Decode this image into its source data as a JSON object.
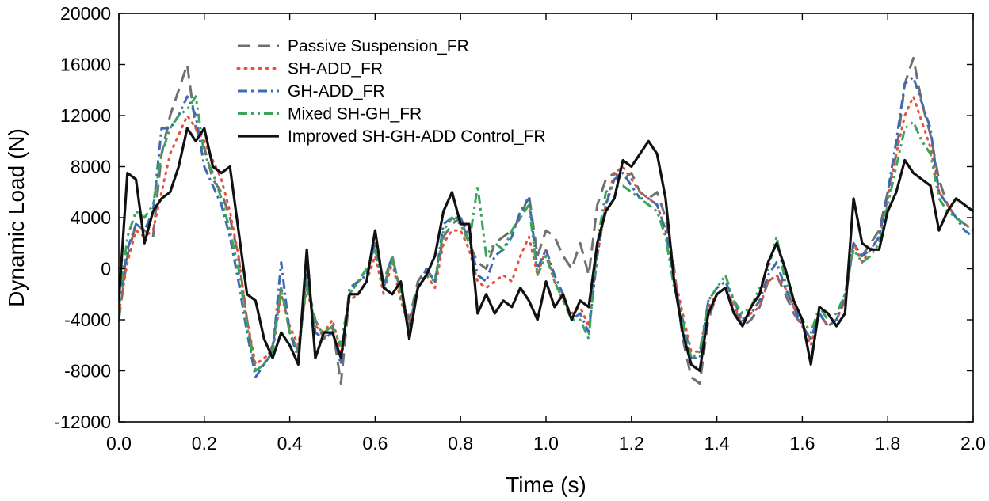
{
  "chart_data": {
    "type": "line",
    "title": "",
    "xlabel": "Time (s)",
    "ylabel": "Dynamic Load (N)",
    "xlim": [
      0,
      2
    ],
    "ylim": [
      -12000,
      20000
    ],
    "xticks": [
      0.0,
      0.2,
      0.4,
      0.6,
      0.8,
      1.0,
      1.2,
      1.4,
      1.6,
      1.8,
      2.0
    ],
    "xtick_labels": [
      "0.0",
      "0.2",
      "0.4",
      "0.6",
      "0.8",
      "1.0",
      "1.2",
      "1.4",
      "1.6",
      "1.8",
      "2.0"
    ],
    "yticks": [
      -12000,
      -8000,
      -4000,
      0,
      4000,
      8000,
      12000,
      16000,
      20000
    ],
    "ytick_labels": [
      "-12000",
      "-8000",
      "-4000",
      "0",
      "4000",
      "8000",
      "12000",
      "16000",
      "20000"
    ],
    "legend_position": "top-left",
    "grid": false,
    "series": [
      {
        "name": "Passive Suspension_FR",
        "color": "#707070",
        "style": "dashed",
        "x": [
          0.0,
          0.02,
          0.04,
          0.06,
          0.08,
          0.1,
          0.12,
          0.14,
          0.16,
          0.18,
          0.2,
          0.22,
          0.24,
          0.26,
          0.28,
          0.3,
          0.32,
          0.34,
          0.36,
          0.38,
          0.4,
          0.42,
          0.44,
          0.46,
          0.48,
          0.5,
          0.52,
          0.54,
          0.56,
          0.58,
          0.6,
          0.62,
          0.64,
          0.66,
          0.68,
          0.7,
          0.72,
          0.74,
          0.76,
          0.78,
          0.8,
          0.82,
          0.84,
          0.86,
          0.88,
          0.9,
          0.92,
          0.94,
          0.96,
          0.98,
          1.0,
          1.02,
          1.04,
          1.06,
          1.08,
          1.1,
          1.12,
          1.14,
          1.16,
          1.18,
          1.2,
          1.22,
          1.24,
          1.26,
          1.28,
          1.3,
          1.32,
          1.34,
          1.36,
          1.38,
          1.4,
          1.42,
          1.44,
          1.46,
          1.48,
          1.5,
          1.52,
          1.54,
          1.56,
          1.58,
          1.6,
          1.62,
          1.64,
          1.66,
          1.68,
          1.7,
          1.72,
          1.74,
          1.76,
          1.78,
          1.8,
          1.82,
          1.84,
          1.86,
          1.88,
          1.9,
          1.92,
          1.94,
          1.96,
          1.98,
          2.0
        ],
        "y": [
          -4000,
          1000,
          3500,
          3000,
          2500,
          9000,
          12000,
          14000,
          16000,
          11000,
          9500,
          7000,
          6000,
          4000,
          1000,
          -4000,
          -8000,
          -7500,
          -6000,
          -1500,
          -5000,
          -6500,
          -1000,
          -4000,
          -5500,
          -4500,
          -9000,
          -2000,
          -1000,
          -500,
          2000,
          -1000,
          1000,
          -2000,
          -4000,
          -1000,
          0,
          -1000,
          2500,
          3500,
          4000,
          2000,
          500,
          0,
          2000,
          2500,
          3000,
          4000,
          5800,
          1000,
          3000,
          2500,
          1000,
          0,
          2000,
          -500,
          5000,
          7000,
          7500,
          7000,
          7500,
          6000,
          5500,
          6000,
          4000,
          0,
          -5500,
          -8500,
          -9000,
          -4000,
          -2000,
          -1500,
          -3000,
          -4500,
          -4000,
          -3000,
          -1000,
          -500,
          -2000,
          -3500,
          -4500,
          -5500,
          -3500,
          -4500,
          -4000,
          -2500,
          2000,
          1000,
          2000,
          3000,
          6000,
          9000,
          14500,
          16500,
          13000,
          10500,
          7000,
          5000,
          4000,
          3500,
          3000
        ]
      },
      {
        "name": "SH-ADD_FR",
        "color": "#e8503a",
        "style": "dotted",
        "x": [
          0.0,
          0.02,
          0.04,
          0.06,
          0.08,
          0.1,
          0.12,
          0.14,
          0.16,
          0.18,
          0.2,
          0.22,
          0.24,
          0.26,
          0.28,
          0.3,
          0.32,
          0.34,
          0.36,
          0.38,
          0.4,
          0.42,
          0.44,
          0.46,
          0.48,
          0.5,
          0.52,
          0.54,
          0.56,
          0.58,
          0.6,
          0.62,
          0.64,
          0.66,
          0.68,
          0.7,
          0.72,
          0.74,
          0.76,
          0.78,
          0.8,
          0.82,
          0.84,
          0.86,
          0.88,
          0.9,
          0.92,
          0.94,
          0.96,
          0.98,
          1.0,
          1.02,
          1.04,
          1.06,
          1.08,
          1.1,
          1.12,
          1.14,
          1.16,
          1.18,
          1.2,
          1.22,
          1.24,
          1.26,
          1.28,
          1.3,
          1.32,
          1.34,
          1.36,
          1.38,
          1.4,
          1.42,
          1.44,
          1.46,
          1.48,
          1.5,
          1.52,
          1.54,
          1.56,
          1.58,
          1.6,
          1.62,
          1.64,
          1.66,
          1.68,
          1.7,
          1.72,
          1.74,
          1.76,
          1.78,
          1.8,
          1.82,
          1.84,
          1.86,
          1.88,
          1.9,
          1.92,
          1.94,
          1.96,
          1.98,
          2.0
        ],
        "y": [
          -3500,
          500,
          3000,
          2500,
          3000,
          6000,
          9000,
          10500,
          12000,
          11000,
          10000,
          8500,
          7000,
          4500,
          1000,
          -4000,
          -7500,
          -7000,
          -6500,
          -2000,
          -4500,
          -6000,
          -1500,
          -4500,
          -5000,
          -4000,
          -6500,
          -2500,
          -2000,
          -1000,
          1000,
          -2000,
          500,
          -2500,
          -4500,
          -1500,
          -500,
          -1500,
          2000,
          3000,
          3000,
          1500,
          -1000,
          -1500,
          -1000,
          -500,
          -1000,
          1000,
          2500,
          -500,
          1500,
          -1000,
          -2500,
          -3500,
          -3000,
          -4500,
          1000,
          5000,
          7500,
          8000,
          7000,
          6000,
          5500,
          5000,
          3000,
          -500,
          -3500,
          -6500,
          -6500,
          -3000,
          -2000,
          -1500,
          -3000,
          -4000,
          -3500,
          -3000,
          -1000,
          -500,
          -1500,
          -3000,
          -4500,
          -6000,
          -3500,
          -4500,
          -4000,
          -2500,
          2000,
          500,
          1500,
          2500,
          5500,
          9000,
          12000,
          13500,
          11500,
          9500,
          6000,
          5000,
          4000,
          3500,
          3000
        ]
      },
      {
        "name": "GH-ADD_FR",
        "color": "#3e6ab3",
        "style": "dashdot",
        "x": [
          0.0,
          0.02,
          0.04,
          0.06,
          0.08,
          0.1,
          0.12,
          0.14,
          0.16,
          0.18,
          0.2,
          0.22,
          0.24,
          0.26,
          0.28,
          0.3,
          0.32,
          0.34,
          0.36,
          0.38,
          0.4,
          0.42,
          0.44,
          0.46,
          0.48,
          0.5,
          0.52,
          0.54,
          0.56,
          0.58,
          0.6,
          0.62,
          0.64,
          0.66,
          0.68,
          0.7,
          0.72,
          0.74,
          0.76,
          0.78,
          0.8,
          0.82,
          0.84,
          0.86,
          0.88,
          0.9,
          0.92,
          0.94,
          0.96,
          0.98,
          1.0,
          1.02,
          1.04,
          1.06,
          1.08,
          1.1,
          1.12,
          1.14,
          1.16,
          1.18,
          1.2,
          1.22,
          1.24,
          1.26,
          1.28,
          1.3,
          1.32,
          1.34,
          1.36,
          1.38,
          1.4,
          1.42,
          1.44,
          1.46,
          1.48,
          1.5,
          1.52,
          1.54,
          1.56,
          1.58,
          1.6,
          1.62,
          1.64,
          1.66,
          1.68,
          1.7,
          1.72,
          1.74,
          1.76,
          1.78,
          1.8,
          1.82,
          1.84,
          1.86,
          1.88,
          1.9,
          1.92,
          1.94,
          1.96,
          1.98,
          2.0
        ],
        "y": [
          -3000,
          1500,
          3500,
          3000,
          4500,
          11000,
          11000,
          12000,
          13500,
          12000,
          8000,
          6500,
          5000,
          2500,
          -1000,
          -5000,
          -8500,
          -7500,
          -6500,
          500,
          -5000,
          -7000,
          -500,
          -5000,
          -5500,
          -5000,
          -7500,
          -1500,
          -1000,
          -500,
          2000,
          -1500,
          1000,
          -2000,
          -4500,
          -1500,
          0,
          -1000,
          3500,
          4000,
          4000,
          2500,
          -500,
          -1000,
          1000,
          1500,
          2500,
          4500,
          5500,
          0,
          1500,
          -500,
          -2000,
          -4000,
          -3500,
          -5000,
          1000,
          5000,
          7000,
          7500,
          6500,
          5500,
          5500,
          5000,
          3000,
          -1000,
          -4000,
          -7000,
          -7000,
          -2500,
          -1500,
          -1000,
          -2500,
          -4000,
          -3500,
          -2500,
          -500,
          500,
          -1500,
          -3000,
          -4500,
          -5500,
          -3500,
          -4500,
          -4000,
          -2000,
          2000,
          1000,
          1500,
          2500,
          6000,
          10000,
          14500,
          15000,
          13000,
          11000,
          6000,
          5000,
          4000,
          3000,
          2500
        ]
      },
      {
        "name": "Mixed SH-GH_FR",
        "color": "#3aa55a",
        "style": "dashdotdot",
        "x": [
          0.0,
          0.02,
          0.04,
          0.06,
          0.08,
          0.1,
          0.12,
          0.14,
          0.16,
          0.18,
          0.2,
          0.22,
          0.24,
          0.26,
          0.28,
          0.3,
          0.32,
          0.34,
          0.36,
          0.38,
          0.4,
          0.42,
          0.44,
          0.46,
          0.48,
          0.5,
          0.52,
          0.54,
          0.56,
          0.58,
          0.6,
          0.62,
          0.64,
          0.66,
          0.68,
          0.7,
          0.72,
          0.74,
          0.76,
          0.78,
          0.8,
          0.82,
          0.84,
          0.86,
          0.88,
          0.9,
          0.92,
          0.94,
          0.96,
          0.98,
          1.0,
          1.02,
          1.04,
          1.06,
          1.08,
          1.1,
          1.12,
          1.14,
          1.16,
          1.18,
          1.2,
          1.22,
          1.24,
          1.26,
          1.28,
          1.3,
          1.32,
          1.34,
          1.36,
          1.38,
          1.4,
          1.42,
          1.44,
          1.46,
          1.48,
          1.5,
          1.52,
          1.54,
          1.56,
          1.58,
          1.6,
          1.62,
          1.64,
          1.66,
          1.68,
          1.7,
          1.72,
          1.74,
          1.76,
          1.78,
          1.8,
          1.82,
          1.84,
          1.86,
          1.88,
          1.9,
          1.92,
          1.94,
          1.96,
          1.98,
          2.0
        ],
        "y": [
          -3000,
          2500,
          4500,
          4000,
          5000,
          9000,
          11000,
          12000,
          12500,
          13500,
          9000,
          7500,
          5500,
          3000,
          0,
          -4500,
          -8000,
          -7500,
          -6500,
          -1500,
          -5000,
          -6500,
          -1000,
          -4500,
          -5000,
          -4500,
          -6000,
          -2000,
          -1000,
          0,
          1500,
          -1500,
          1000,
          -2000,
          -5000,
          -1500,
          -500,
          -1000,
          3000,
          4000,
          3500,
          2000,
          6500,
          1000,
          2000,
          1500,
          3000,
          4000,
          5000,
          -500,
          1000,
          -1000,
          -2500,
          -4000,
          -4000,
          -5500,
          2000,
          6000,
          6500,
          6500,
          6000,
          5500,
          5000,
          4500,
          2500,
          -1500,
          -4000,
          -7000,
          -6500,
          -2500,
          -1500,
          -500,
          -2500,
          -3500,
          -3000,
          -1500,
          0,
          2500,
          -1000,
          -2500,
          -4000,
          -5000,
          -3000,
          -4000,
          -3500,
          -2000,
          1500,
          500,
          1000,
          2000,
          5000,
          8000,
          11000,
          11500,
          10000,
          9000,
          5500,
          4500,
          4000,
          3500,
          3000
        ]
      },
      {
        "name": "Improved SH-GH-ADD Control_FR",
        "color": "#111111",
        "style": "solid",
        "x": [
          0.0,
          0.02,
          0.04,
          0.06,
          0.08,
          0.1,
          0.12,
          0.14,
          0.16,
          0.18,
          0.2,
          0.22,
          0.24,
          0.26,
          0.28,
          0.3,
          0.32,
          0.34,
          0.36,
          0.38,
          0.4,
          0.42,
          0.44,
          0.46,
          0.48,
          0.5,
          0.52,
          0.54,
          0.56,
          0.58,
          0.6,
          0.62,
          0.64,
          0.66,
          0.68,
          0.7,
          0.72,
          0.74,
          0.76,
          0.78,
          0.8,
          0.82,
          0.84,
          0.86,
          0.88,
          0.9,
          0.92,
          0.94,
          0.96,
          0.98,
          1.0,
          1.02,
          1.04,
          1.06,
          1.08,
          1.1,
          1.12,
          1.14,
          1.16,
          1.18,
          1.2,
          1.22,
          1.24,
          1.26,
          1.28,
          1.3,
          1.32,
          1.34,
          1.36,
          1.38,
          1.4,
          1.42,
          1.44,
          1.46,
          1.48,
          1.5,
          1.52,
          1.54,
          1.56,
          1.58,
          1.6,
          1.62,
          1.64,
          1.66,
          1.68,
          1.7,
          1.72,
          1.74,
          1.76,
          1.78,
          1.8,
          1.82,
          1.84,
          1.86,
          1.88,
          1.9,
          1.92,
          1.94,
          1.96,
          1.98,
          2.0
        ],
        "y": [
          -2500,
          7500,
          7000,
          2000,
          4500,
          5500,
          6000,
          8000,
          11000,
          10000,
          11000,
          8000,
          7500,
          8000,
          3000,
          -2000,
          -2500,
          -5500,
          -7000,
          -5000,
          -6000,
          -7500,
          1500,
          -7000,
          -5000,
          -5000,
          -7000,
          -2000,
          -2000,
          -1000,
          3000,
          -1500,
          -2000,
          -1000,
          -5500,
          -1500,
          -500,
          1000,
          4500,
          6000,
          3500,
          3500,
          -3500,
          -2000,
          -3500,
          -2500,
          -3000,
          -1500,
          -2500,
          -4000,
          -1000,
          -3000,
          -2000,
          -4000,
          -2500,
          -3000,
          2000,
          4500,
          5500,
          8500,
          8000,
          9000,
          10000,
          9000,
          5500,
          -1000,
          -5000,
          -7500,
          -8000,
          -3500,
          -2000,
          -1500,
          -3500,
          -4500,
          -3000,
          -2000,
          500,
          2000,
          0,
          -2500,
          -4000,
          -7500,
          -3000,
          -3500,
          -4500,
          -3500,
          5500,
          2000,
          1500,
          1500,
          4500,
          6000,
          8500,
          7500,
          7000,
          6500,
          3000,
          4500,
          5500,
          5000,
          4500
        ]
      }
    ]
  }
}
